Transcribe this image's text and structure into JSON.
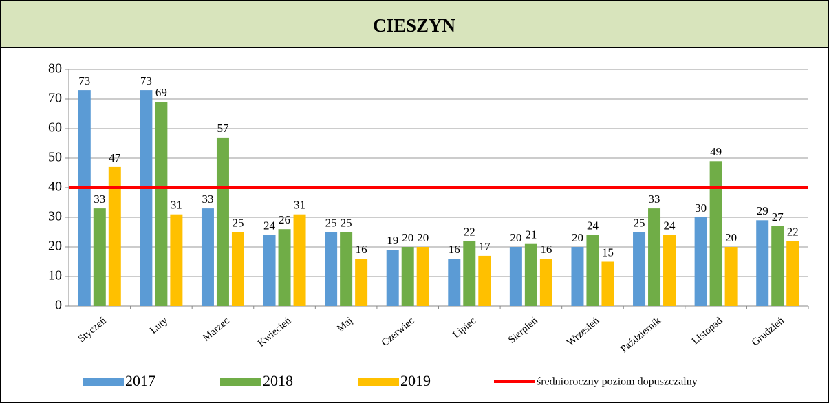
{
  "chart_data": {
    "type": "bar",
    "title": "CIESZYN",
    "categories": [
      "Styczeń",
      "Luty",
      "Marzec",
      "Kwiecień",
      "Maj",
      "Czerwiec",
      "Lipiec",
      "Sierpień",
      "Wrzesień",
      "Październik",
      "Listopad",
      "Grudzień"
    ],
    "series": [
      {
        "name": "2017",
        "color": "#5b9bd5",
        "values": [
          73,
          73,
          33,
          24,
          25,
          19,
          16,
          20,
          20,
          25,
          30,
          29
        ]
      },
      {
        "name": "2018",
        "color": "#70ad47",
        "values": [
          33,
          69,
          57,
          26,
          25,
          20,
          22,
          21,
          24,
          33,
          49,
          27
        ]
      },
      {
        "name": "2019",
        "color": "#ffc000",
        "values": [
          47,
          31,
          25,
          31,
          16,
          20,
          17,
          16,
          15,
          24,
          20,
          22
        ]
      }
    ],
    "limit": {
      "name": "średnioroczny poziom dopuszczalny",
      "value": 40,
      "color": "#ff0000"
    },
    "ylim": [
      0,
      80
    ],
    "yticks": [
      0,
      10,
      20,
      30,
      40,
      50,
      60,
      70,
      80
    ],
    "grid": true,
    "legend": "bottom"
  }
}
